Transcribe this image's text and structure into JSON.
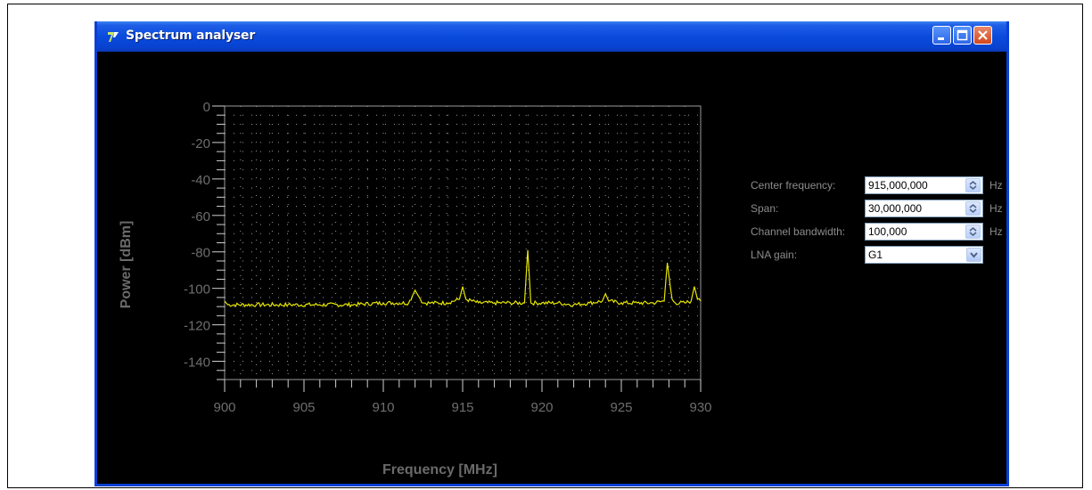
{
  "window": {
    "title": "Spectrum analyser",
    "titlebar_color": "#0a4bdd"
  },
  "controls": {
    "center_frequency": {
      "label": "Center frequency:",
      "value": "915,000,000",
      "unit": "Hz"
    },
    "span": {
      "label": "Span:",
      "value": "30,000,000",
      "unit": "Hz"
    },
    "channel_bandwidth": {
      "label": "Channel bandwidth:",
      "value": "100,000",
      "unit": "Hz"
    },
    "lna_gain": {
      "label": "LNA gain:",
      "value": "G1"
    }
  },
  "chart_data": {
    "type": "line",
    "xlabel": "Frequency [MHz]",
    "ylabel": "Power [dBm]",
    "xlim": [
      900,
      930
    ],
    "ylim": [
      -150,
      0
    ],
    "x_ticks": [
      "900",
      "905",
      "910",
      "915",
      "920",
      "925",
      "930"
    ],
    "y_ticks": [
      "0",
      "-20",
      "-40",
      "-60",
      "-80",
      "-100",
      "-120",
      "-140"
    ],
    "grid": true,
    "line_color": "#e6e600",
    "noise_floor": -109,
    "series": [
      {
        "x": [
          900,
          900.2,
          902,
          904,
          906,
          908,
          910,
          911.6,
          911.9,
          912,
          912.2,
          912.5,
          913,
          914,
          914.8,
          915,
          915.2,
          916,
          917,
          918,
          918.9,
          919.1,
          919.3,
          920,
          921,
          922,
          923,
          923.8,
          924,
          924.2,
          925,
          926,
          927,
          927.7,
          927.9,
          928.1,
          928.2,
          928.4,
          929,
          929.4,
          929.6,
          929.8,
          930
        ],
        "y": [
          -107,
          -109,
          -109,
          -109,
          -109,
          -109,
          -108,
          -108,
          -103,
          -101,
          -104,
          -108,
          -108,
          -108,
          -106,
          -99,
          -106,
          -108,
          -108,
          -108,
          -108,
          -79,
          -108,
          -108,
          -108,
          -109,
          -108,
          -107,
          -103,
          -107,
          -108,
          -108,
          -108,
          -107,
          -86,
          -100,
          -106,
          -108,
          -108,
          -107,
          -99,
          -106,
          -107
        ]
      }
    ]
  }
}
